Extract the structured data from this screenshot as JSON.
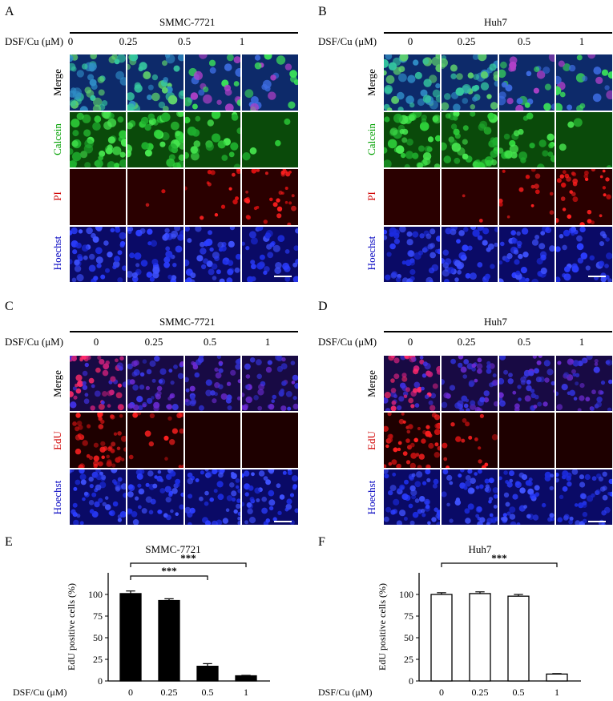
{
  "panel_letters": {
    "A": "A",
    "B": "B",
    "C": "C",
    "D": "D",
    "E": "E",
    "F": "F"
  },
  "treatment_label": "DSF/Cu (μM)",
  "concentrations": [
    "0",
    "0.25",
    "0.5",
    "1"
  ],
  "panel_A": {
    "cell_line": "SMMC-7721",
    "rows": [
      "Merge",
      "Calcein",
      "PI",
      "Hoechst"
    ]
  },
  "panel_B": {
    "cell_line": "Huh7",
    "rows": [
      "Merge",
      "Calcein",
      "PI",
      "Hoechst"
    ]
  },
  "panel_C": {
    "cell_line": "SMMC-7721",
    "rows": [
      "Merge",
      "EdU",
      "Hoechst"
    ]
  },
  "panel_D": {
    "cell_line": "Huh7",
    "rows": [
      "Merge",
      "EdU",
      "Hoechst"
    ]
  },
  "colors": {
    "merge_ad": "#0d2a6a",
    "calcein": "#0a4a0a",
    "pi": "#2a0000",
    "hoechst": "#0a0a66",
    "merge_cd": "#180a44",
    "edu": "#1e0000",
    "green_label": "#00a000",
    "red_label": "#d00000",
    "blue_label": "#0000c0"
  },
  "chart_data": [
    {
      "type": "bar",
      "title": "SMMC-7721",
      "ylabel": "EdU positive cells (%)",
      "xlabel": "DSF/Cu (μM)",
      "categories": [
        "0",
        "0.25",
        "0.5",
        "1"
      ],
      "values": [
        101,
        93,
        17,
        6
      ],
      "errors": [
        3,
        2,
        3,
        0.5
      ],
      "yticks": [
        "0",
        "25",
        "50",
        "75",
        "100"
      ],
      "ylim": [
        0,
        125
      ],
      "bar_fill": "#000000",
      "significance": [
        "***",
        "***"
      ],
      "significance_pairs": [
        [
          0,
          2
        ],
        [
          0,
          3
        ]
      ]
    },
    {
      "type": "bar",
      "title": "Huh7",
      "ylabel": "EdU positive cells (%)",
      "xlabel": "DSF/Cu (μM)",
      "categories": [
        "0",
        "0.25",
        "0.5",
        "1"
      ],
      "values": [
        100,
        101,
        98,
        8
      ],
      "errors": [
        2,
        2,
        2,
        0.5
      ],
      "yticks": [
        "0",
        "25",
        "50",
        "75",
        "100"
      ],
      "ylim": [
        0,
        125
      ],
      "bar_fill": "#ffffff",
      "significance": [
        "***"
      ],
      "significance_pairs": [
        [
          0,
          3
        ]
      ]
    }
  ]
}
